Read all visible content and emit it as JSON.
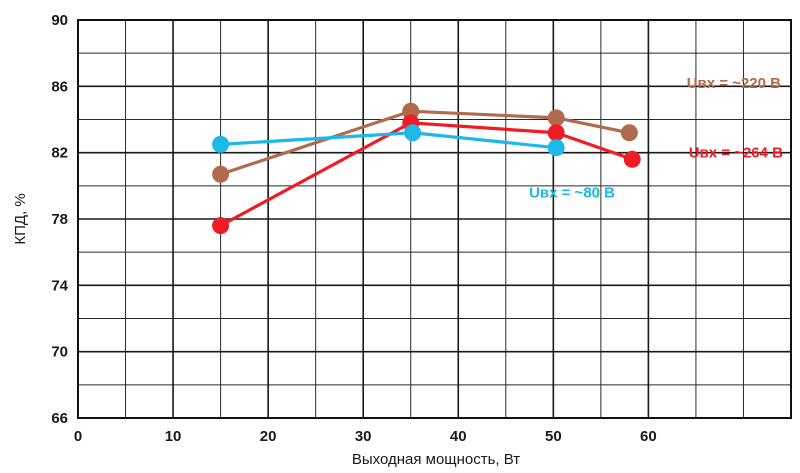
{
  "chart_data": {
    "type": "line",
    "xlabel": "Выходная мощность, Вт",
    "ylabel": "КПД, %",
    "xlim": [
      0,
      75
    ],
    "ylim": [
      66,
      90
    ],
    "x_ticks": [
      0,
      10,
      20,
      30,
      40,
      50,
      60
    ],
    "y_ticks": [
      66,
      70,
      74,
      78,
      82,
      86,
      90
    ],
    "grid": true,
    "series": [
      {
        "name": "Uвх = ~220 В",
        "color": "#b06a4e",
        "points": [
          {
            "x": 15,
            "y": 80.7
          },
          {
            "x": 35,
            "y": 84.5
          },
          {
            "x": 50.3,
            "y": 84.1
          },
          {
            "x": 58,
            "y": 83.2
          }
        ]
      },
      {
        "name": "Uвх = ~264 В",
        "color": "#ee1c24",
        "points": [
          {
            "x": 15,
            "y": 77.6
          },
          {
            "x": 35,
            "y": 83.8
          },
          {
            "x": 50.3,
            "y": 83.2
          },
          {
            "x": 58.3,
            "y": 81.6
          }
        ]
      },
      {
        "name": "Uвх = ~80 В",
        "color": "#1cb8e8",
        "points": [
          {
            "x": 15,
            "y": 82.5
          },
          {
            "x": 35.2,
            "y": 83.2
          },
          {
            "x": 50.3,
            "y": 82.3
          }
        ]
      }
    ]
  }
}
